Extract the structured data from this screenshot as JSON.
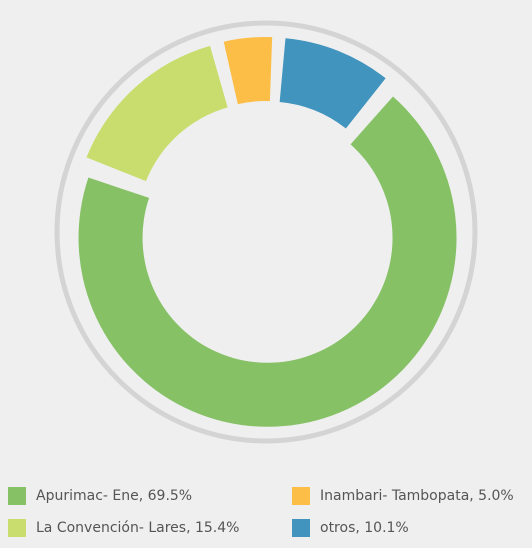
{
  "chart_data": {
    "type": "pie",
    "variant": "donut",
    "exploded_slices": true,
    "title": "",
    "slices": [
      {
        "label": "Apurimac- Ene",
        "value": 69.5,
        "legend_text": "Apurimac- Ene, 69.5%",
        "color": "#86c166"
      },
      {
        "label": "La Convención- Lares",
        "value": 15.4,
        "legend_text": "La Convención- Lares, 15.4%",
        "color": "#c8dd6e"
      },
      {
        "label": "Inambari- Tambopata",
        "value": 5.0,
        "legend_text": "Inambari- Tambopata, 5.0%",
        "color": "#fdbe47"
      },
      {
        "label": "otros",
        "value": 10.1,
        "legend_text": "otros, 10.1%",
        "color": "#4094bd"
      }
    ],
    "legend": {
      "placement": "bottom",
      "order": [
        "Apurimac- Ene",
        "Inambari- Tambopata",
        "La Convención- Lares",
        "otros"
      ]
    }
  },
  "colors": {
    "background": "#efefef",
    "outer_ring": "#d4d4d4",
    "label_text": "#555555"
  }
}
